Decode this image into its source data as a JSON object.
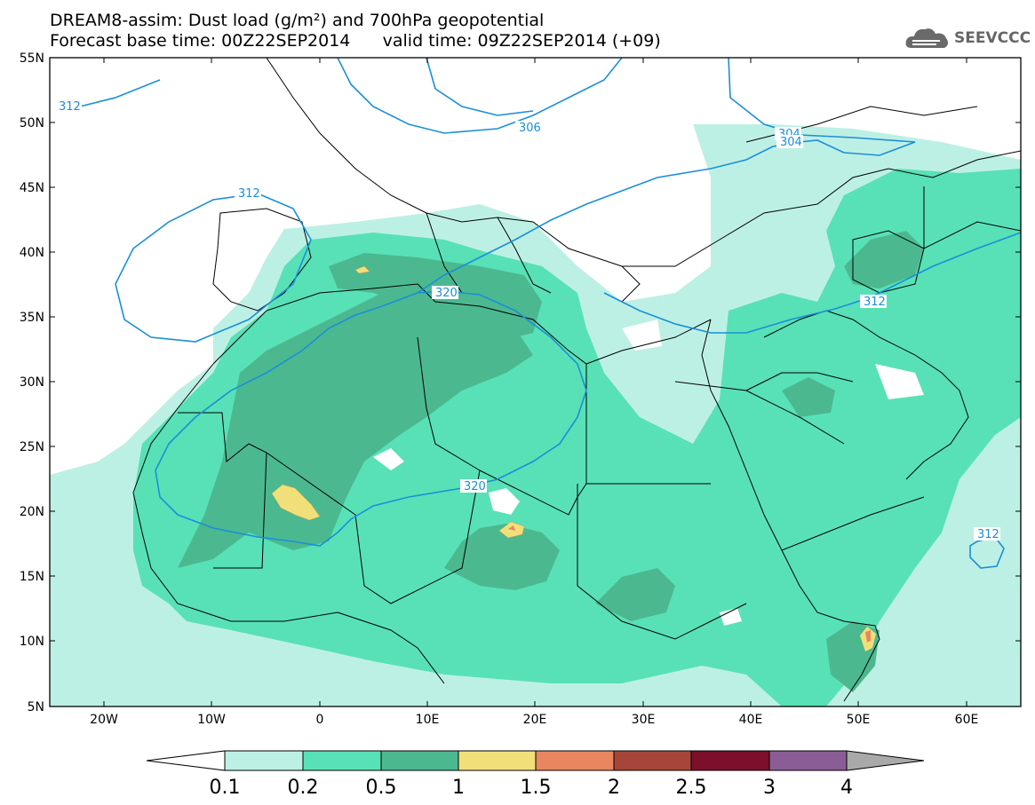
{
  "header": {
    "title_line1": "DREAM8-assim: Dust load (g/m²) and 700hPa geopotential",
    "title_line2": "Forecast base time: 00Z22SEP2014      valid time: 09Z22SEP2014 (+09)",
    "logo_text": "SEEVCCC",
    "logo_icon": "cloud-icon"
  },
  "axes": {
    "lat_labels": [
      "55N",
      "50N",
      "45N",
      "40N",
      "35N",
      "30N",
      "25N",
      "20N",
      "15N",
      "10N",
      "5N"
    ],
    "lon_labels": [
      "20W",
      "10W",
      "0",
      "10E",
      "20E",
      "30E",
      "40E",
      "50E",
      "60E"
    ]
  },
  "contours": {
    "color": "#1a8fd8",
    "labels": [
      "312",
      "306",
      "304",
      "304",
      "312",
      "320",
      "312",
      "320",
      "312"
    ]
  },
  "colorbar": {
    "ticks": [
      "0.1",
      "0.2",
      "0.5",
      "1",
      "1.5",
      "2",
      "2.5",
      "3",
      "4"
    ],
    "colors": [
      "#bdf0e5",
      "#58e1b6",
      "#4cb890",
      "#f1e07a",
      "#e8865f",
      "#a6463a",
      "#7c0f2a",
      "#8a5d96",
      "#a9a9a9"
    ]
  },
  "colors": {
    "dust_01": "#bdf0e5",
    "dust_02": "#58e1b6",
    "dust_05": "#4cb890",
    "dust_1": "#f1e07a",
    "dust_15": "#e8865f",
    "dust_2": "#a6463a",
    "coast": "#000000"
  }
}
